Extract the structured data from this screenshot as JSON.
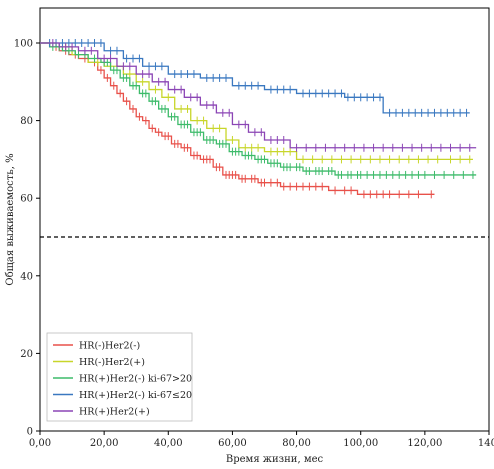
{
  "chart_data": {
    "type": "line",
    "subtype": "kaplan-meier",
    "xlabel": "Время жизни, мес",
    "ylabel": "Общая выживаемость, %",
    "xlim": [
      0,
      140
    ],
    "ylim": [
      0,
      105
    ],
    "x_ticks": [
      0,
      20,
      40,
      60,
      80,
      100,
      120,
      140
    ],
    "x_tick_labels": [
      "0,00",
      "20,00",
      "40,00",
      "60,00",
      "80,00",
      "100,00",
      "120,00",
      "140,"
    ],
    "y_ticks": [
      0,
      20,
      40,
      60,
      80,
      100
    ],
    "y_tick_labels": [
      "0",
      "20",
      "40",
      "60",
      "80",
      "100"
    ],
    "reference_line": {
      "y": 50,
      "style": "dashed",
      "color": "#000000"
    },
    "grid": false,
    "legend_position": "bottom-left",
    "series": [
      {
        "name": "HR(-)Her2(-)",
        "color": "#e8514a",
        "steps": [
          [
            0,
            100
          ],
          [
            3,
            99
          ],
          [
            6,
            98
          ],
          [
            9,
            97
          ],
          [
            12,
            96
          ],
          [
            15,
            95
          ],
          [
            18,
            93
          ],
          [
            20,
            91
          ],
          [
            22,
            89
          ],
          [
            24,
            87
          ],
          [
            26,
            85
          ],
          [
            28,
            83
          ],
          [
            30,
            81
          ],
          [
            32,
            80
          ],
          [
            34,
            78
          ],
          [
            36,
            77
          ],
          [
            38,
            76
          ],
          [
            41,
            74
          ],
          [
            44,
            73
          ],
          [
            47,
            71
          ],
          [
            50,
            70
          ],
          [
            54,
            68
          ],
          [
            57,
            66
          ],
          [
            62,
            65
          ],
          [
            68,
            64
          ],
          [
            75,
            63
          ],
          [
            90,
            62
          ],
          [
            99,
            61
          ],
          [
            110,
            61
          ],
          [
            123,
            61
          ]
        ],
        "censored": [
          5,
          8,
          11,
          14,
          17,
          19,
          21,
          23,
          25,
          27,
          29,
          31,
          33,
          35,
          37,
          39,
          40,
          42,
          43,
          45,
          46,
          48,
          49,
          51,
          52,
          53,
          55,
          56,
          58,
          59,
          60,
          61,
          63,
          64,
          66,
          67,
          69,
          70,
          72,
          74,
          76,
          78,
          80,
          82,
          84,
          86,
          88,
          92,
          95,
          97,
          101,
          103,
          105,
          107,
          109,
          112,
          115,
          118,
          122
        ]
      },
      {
        "name": "HR(-)Her2(+)",
        "color": "#c8d62a",
        "steps": [
          [
            0,
            100
          ],
          [
            5,
            99
          ],
          [
            10,
            97
          ],
          [
            15,
            95
          ],
          [
            20,
            94
          ],
          [
            26,
            92
          ],
          [
            30,
            90
          ],
          [
            34,
            88
          ],
          [
            38,
            86
          ],
          [
            42,
            83
          ],
          [
            47,
            80
          ],
          [
            52,
            78
          ],
          [
            58,
            75
          ],
          [
            62,
            73
          ],
          [
            70,
            72
          ],
          [
            80,
            70
          ],
          [
            135,
            70
          ]
        ],
        "censored": [
          8,
          12,
          18,
          24,
          28,
          32,
          36,
          40,
          44,
          46,
          49,
          51,
          54,
          56,
          60,
          64,
          66,
          68,
          72,
          74,
          76,
          78,
          82,
          85,
          88,
          91,
          94,
          97,
          100,
          103,
          106,
          109,
          112,
          115,
          118,
          121,
          124,
          128,
          131,
          134
        ]
      },
      {
        "name": "HR(+)Her2(-) ki-67>20",
        "color": "#3dbb6a",
        "steps": [
          [
            0,
            100
          ],
          [
            3,
            99
          ],
          [
            7,
            98
          ],
          [
            11,
            97
          ],
          [
            15,
            96
          ],
          [
            19,
            95
          ],
          [
            22,
            93
          ],
          [
            25,
            91
          ],
          [
            28,
            89
          ],
          [
            31,
            87
          ],
          [
            34,
            85
          ],
          [
            37,
            83
          ],
          [
            40,
            81
          ],
          [
            43,
            79
          ],
          [
            47,
            77
          ],
          [
            51,
            75
          ],
          [
            55,
            74
          ],
          [
            59,
            72
          ],
          [
            63,
            71
          ],
          [
            67,
            70
          ],
          [
            71,
            69
          ],
          [
            75,
            68
          ],
          [
            82,
            67
          ],
          [
            92,
            66
          ],
          [
            136,
            66
          ]
        ],
        "censored": [
          4,
          6,
          9,
          12,
          14,
          17,
          20,
          21,
          23,
          24,
          26,
          27,
          29,
          30,
          32,
          33,
          35,
          36,
          38,
          39,
          41,
          42,
          44,
          45,
          46,
          48,
          49,
          50,
          52,
          53,
          54,
          56,
          57,
          58,
          60,
          61,
          62,
          64,
          65,
          66,
          68,
          69,
          70,
          72,
          73,
          74,
          76,
          77,
          78,
          80,
          81,
          83,
          84,
          86,
          87,
          88,
          90,
          91,
          93,
          94,
          96,
          97,
          99,
          100,
          102,
          104,
          106,
          108,
          110,
          112,
          114,
          116,
          118,
          120,
          123,
          126,
          129,
          132,
          135
        ]
      },
      {
        "name": "HR(+)Her2(-) ki-67≤20",
        "color": "#3a78c0",
        "steps": [
          [
            0,
            100
          ],
          [
            20,
            98
          ],
          [
            26,
            96
          ],
          [
            32,
            94
          ],
          [
            40,
            92
          ],
          [
            50,
            91
          ],
          [
            60,
            89
          ],
          [
            70,
            88
          ],
          [
            80,
            87
          ],
          [
            95,
            86
          ],
          [
            107,
            82
          ],
          [
            134,
            82
          ]
        ],
        "censored": [
          3,
          5,
          7,
          9,
          11,
          13,
          15,
          17,
          19,
          22,
          24,
          27,
          29,
          31,
          34,
          36,
          38,
          42,
          44,
          46,
          48,
          52,
          54,
          56,
          58,
          62,
          64,
          66,
          68,
          72,
          74,
          76,
          78,
          82,
          84,
          86,
          88,
          90,
          92,
          94,
          96,
          98,
          100,
          102,
          104,
          106,
          109,
          111,
          113,
          115,
          117,
          119,
          121,
          123,
          125,
          127,
          129,
          131,
          133
        ]
      },
      {
        "name": "HR(+)Her2(+)",
        "color": "#8b45b5",
        "steps": [
          [
            0,
            100
          ],
          [
            6,
            99
          ],
          [
            12,
            98
          ],
          [
            18,
            96
          ],
          [
            24,
            94
          ],
          [
            30,
            92
          ],
          [
            35,
            90
          ],
          [
            40,
            88
          ],
          [
            45,
            86
          ],
          [
            50,
            84
          ],
          [
            55,
            82
          ],
          [
            60,
            79
          ],
          [
            65,
            77
          ],
          [
            70,
            75
          ],
          [
            78,
            73
          ],
          [
            136,
            73
          ]
        ],
        "censored": [
          4,
          8,
          10,
          14,
          16,
          20,
          22,
          26,
          28,
          32,
          34,
          37,
          39,
          42,
          44,
          47,
          49,
          52,
          54,
          57,
          59,
          62,
          64,
          67,
          69,
          72,
          74,
          76,
          80,
          83,
          86,
          89,
          92,
          95,
          98,
          101,
          104,
          107,
          110,
          113,
          116,
          119,
          122,
          125,
          128,
          131,
          134
        ]
      }
    ]
  }
}
